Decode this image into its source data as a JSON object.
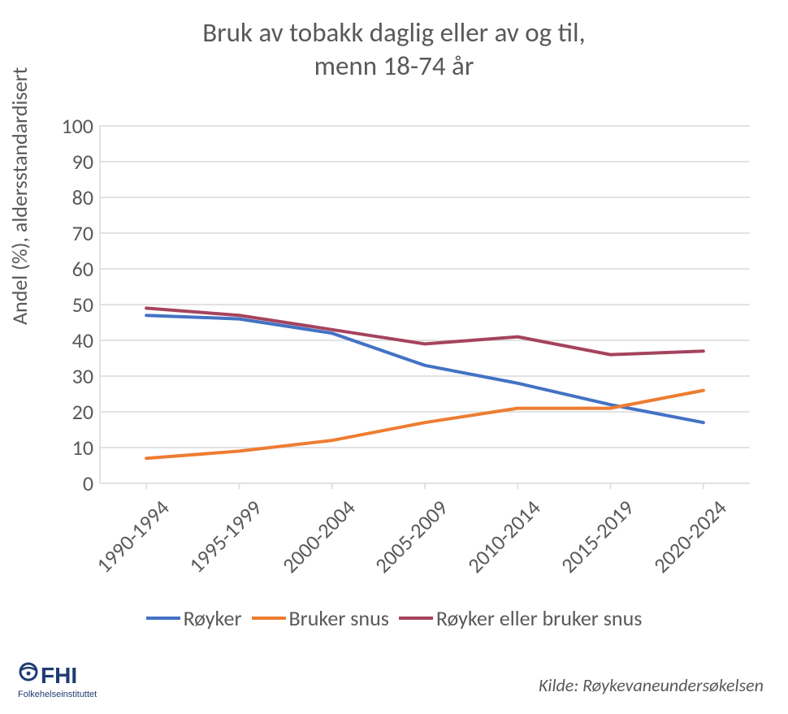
{
  "chart": {
    "type": "line",
    "title_line1": "Bruk av tobakk daglig eller av og til,",
    "title_line2": "menn 18-74 år",
    "title_fontsize": 33,
    "title_color": "#595959",
    "y_axis_label": "Andel (%), aldersstandardisert",
    "y_axis_fontsize": 26,
    "ylim": [
      0,
      100
    ],
    "ytick_step": 10,
    "y_ticks": [
      0,
      10,
      20,
      30,
      40,
      50,
      60,
      70,
      80,
      90,
      100
    ],
    "x_categories": [
      "1990-1994",
      "1995-1999",
      "2000-2004",
      "2005-2009",
      "2010-2014",
      "2015-2019",
      "2020-2024"
    ],
    "x_tick_fontsize": 26,
    "x_tick_rotation": -45,
    "gridline_color": "#d9d9d9",
    "axis_line_color": "#d9d9d9",
    "background_color": "#ffffff",
    "line_width": 4,
    "series": [
      {
        "name": "Røyker",
        "color": "#4472c4",
        "values": [
          47,
          46,
          42,
          33,
          28,
          22,
          17
        ]
      },
      {
        "name": "Bruker snus",
        "color": "#ed7d31",
        "values": [
          7,
          9,
          12,
          17,
          21,
          21,
          26
        ]
      },
      {
        "name": "Røyker eller bruker snus",
        "color": "#a5435e",
        "values": [
          49,
          47,
          43,
          39,
          41,
          36,
          37
        ]
      }
    ],
    "legend_fontsize": 26,
    "legend_position": "bottom",
    "source_text": "Kilde: Røykevaneundersøkelsen",
    "source_fontsize": 22,
    "source_style": "italic",
    "logo": {
      "main_text": "FHI",
      "sub_text": "Folkehelseinstituttet",
      "color": "#1f3b73"
    }
  }
}
